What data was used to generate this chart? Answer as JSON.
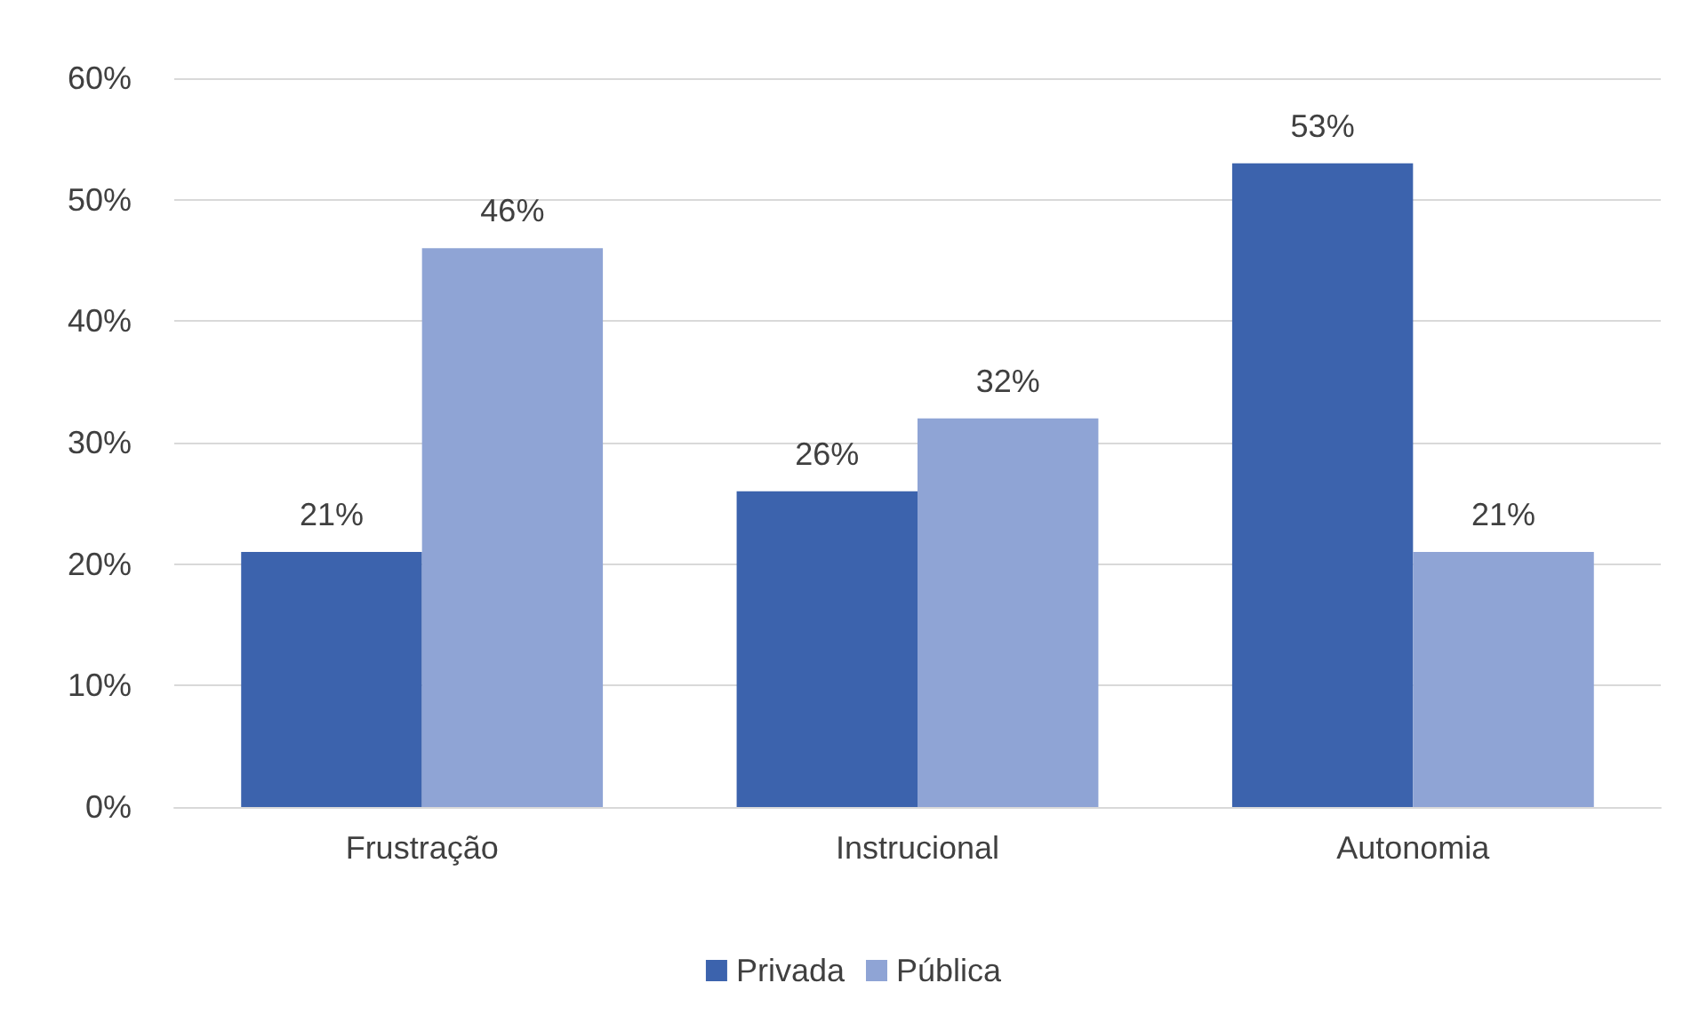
{
  "chart_data": {
    "type": "bar",
    "categories": [
      "Frustração",
      "Instrucional",
      "Autonomia"
    ],
    "series": [
      {
        "name": "Privada",
        "color": "#3c63ad",
        "values": [
          21,
          26,
          53
        ],
        "value_labels": [
          "21%",
          "26%",
          "53%"
        ]
      },
      {
        "name": "Pública",
        "color": "#8fa4d5",
        "values": [
          46,
          32,
          21
        ],
        "value_labels": [
          "46%",
          "32%",
          "21%"
        ]
      }
    ],
    "ylim": [
      0,
      60
    ],
    "yticks": [
      {
        "value": 0,
        "label": "0%"
      },
      {
        "value": 10,
        "label": "10%"
      },
      {
        "value": 20,
        "label": "20%"
      },
      {
        "value": 30,
        "label": "30%"
      },
      {
        "value": 40,
        "label": "40%"
      },
      {
        "value": 50,
        "label": "50%"
      },
      {
        "value": 60,
        "label": "60%"
      }
    ],
    "grid": "y",
    "legend": "bottom"
  }
}
